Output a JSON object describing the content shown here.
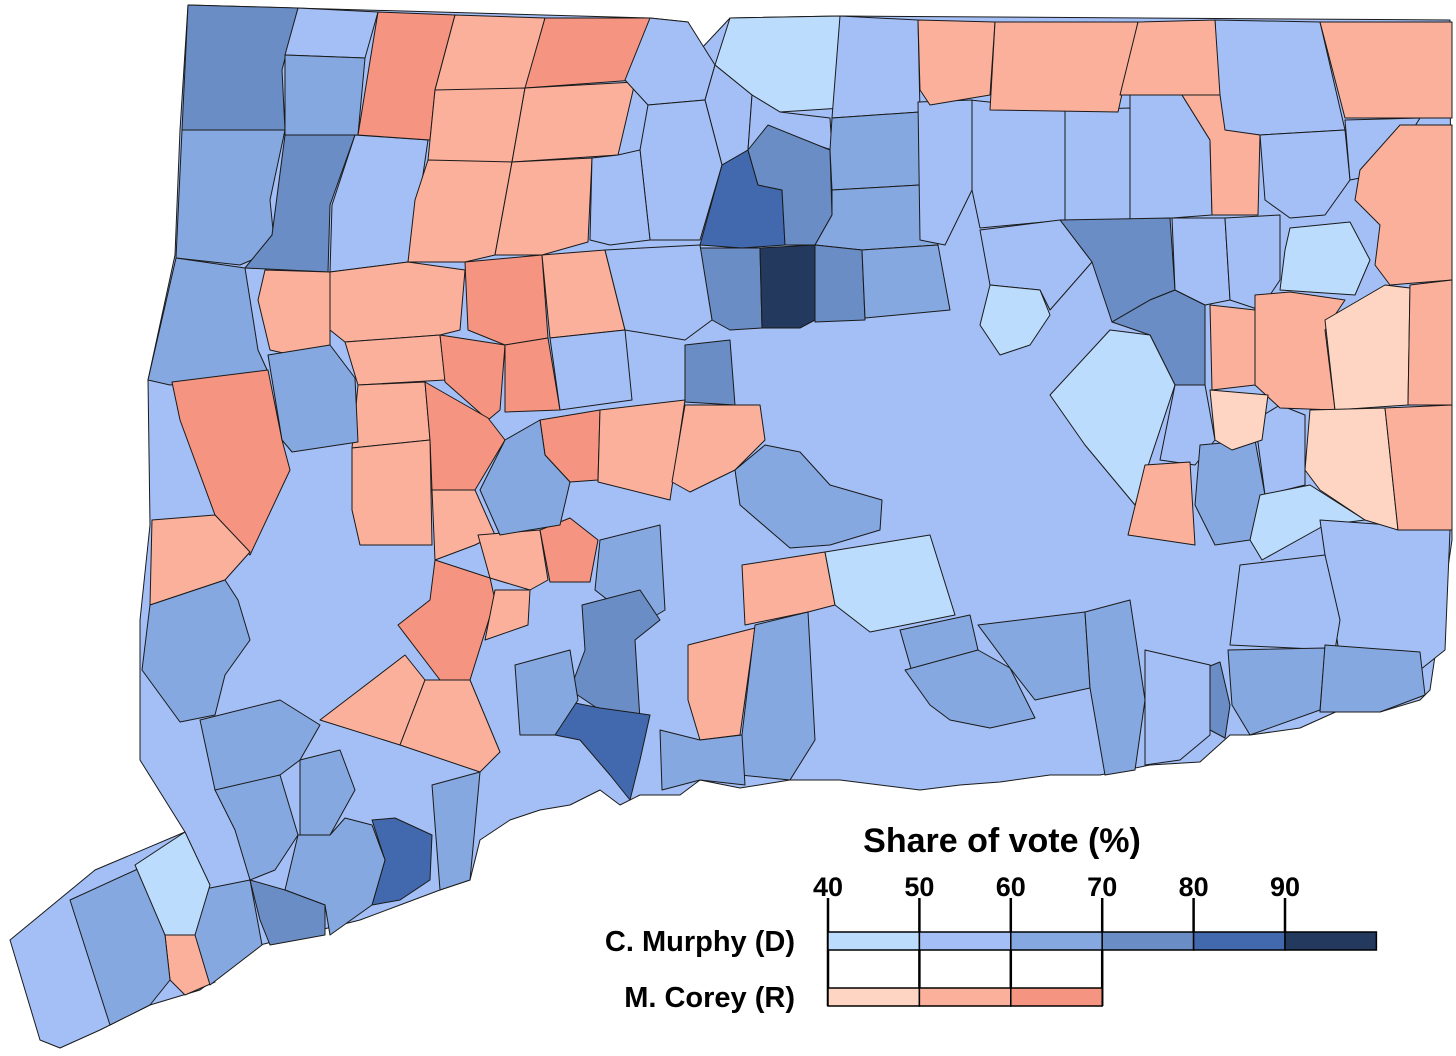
{
  "legend": {
    "title": "Share of vote (%)",
    "ticks": [
      40,
      50,
      60,
      70,
      80,
      90
    ],
    "candidates": [
      {
        "label": "C. Murphy (D)",
        "bins": [
          {
            "range": [
              40,
              50
            ],
            "color": "#bcdcfd"
          },
          {
            "range": [
              50,
              60
            ],
            "color": "#a3bff6"
          },
          {
            "range": [
              60,
              70
            ],
            "color": "#86a8e0"
          },
          {
            "range": [
              70,
              80
            ],
            "color": "#6a8dc6"
          },
          {
            "range": [
              80,
              90
            ],
            "color": "#4269ad"
          },
          {
            "range": [
              90,
              100
            ],
            "color": "#23395e"
          }
        ]
      },
      {
        "label": "M. Corey (R)",
        "bins": [
          {
            "range": [
              40,
              50
            ],
            "color": "#fdd5c2"
          },
          {
            "range": [
              50,
              60
            ],
            "color": "#fbb09c"
          },
          {
            "range": [
              60,
              70
            ],
            "color": "#f59581"
          }
        ]
      }
    ]
  }
}
